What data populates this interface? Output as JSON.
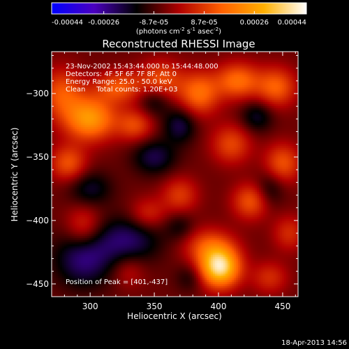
{
  "chart_data": {
    "type": "heatmap",
    "title": "Reconstructed RHESSI Image",
    "xlabel": "Heliocentric X (arcsec)",
    "ylabel": "Heliocentric Y (arcsec)",
    "xlim": [
      270,
      462
    ],
    "ylim": [
      -460,
      -267
    ],
    "x_ticks": [
      300,
      350,
      400,
      450
    ],
    "y_ticks": [
      -300,
      -350,
      -400,
      -450
    ],
    "annotations": [
      "23-Nov-2002 15:43:44.000 to 15:44:48.000",
      "Detectors: 4F 5F 6F 7F 8F, Att 0",
      "Energy Range: 25.0 - 50.0 keV",
      "Clean     Total counts: 1.20E+03"
    ],
    "peak_label": "Position of Peak = [401,-437]",
    "peak": {
      "x": 401,
      "y": -437
    },
    "colorbar": {
      "min": -0.00044,
      "max": 0.00044,
      "ticks": [
        "-0.00044",
        "-0.00026",
        "-8.7e-05",
        "8.7e-05",
        "0.00026",
        "0.00044"
      ],
      "unit_label": "(photons cm",
      "unit_sup1": "-2",
      "unit_mid": " s",
      "unit_sup2": "-1",
      "unit_end": " asec",
      "unit_sup3": "-2",
      "unit_close": ")",
      "colormap": [
        "#0000ff",
        "#4b00c0",
        "#000000",
        "#b00000",
        "#ff6000",
        "#ffb000",
        "#ffffff"
      ]
    },
    "sources": [
      {
        "x": 401,
        "y": -437,
        "sx": 11,
        "sy": 11,
        "a": 0.00044
      },
      {
        "x": 392,
        "y": -420,
        "sx": 14,
        "sy": 10,
        "a": 0.00016
      },
      {
        "x": 300,
        "y": -320,
        "sx": 14,
        "sy": 12,
        "a": 0.0003
      },
      {
        "x": 278,
        "y": -300,
        "sx": 12,
        "sy": 14,
        "a": 0.00018
      },
      {
        "x": 322,
        "y": -295,
        "sx": 13,
        "sy": 9,
        "a": 0.00018
      },
      {
        "x": 335,
        "y": -325,
        "sx": 10,
        "sy": 9,
        "a": 0.00016
      },
      {
        "x": 283,
        "y": -355,
        "sx": 10,
        "sy": 10,
        "a": 0.00018
      },
      {
        "x": 295,
        "y": -405,
        "sx": 10,
        "sy": 12,
        "a": 0.00014
      },
      {
        "x": 345,
        "y": -395,
        "sx": 10,
        "sy": 9,
        "a": 0.00012
      },
      {
        "x": 370,
        "y": -380,
        "sx": 10,
        "sy": 10,
        "a": 0.00014
      },
      {
        "x": 355,
        "y": -290,
        "sx": 12,
        "sy": 11,
        "a": 0.00018
      },
      {
        "x": 385,
        "y": -300,
        "sx": 11,
        "sy": 12,
        "a": 0.00022
      },
      {
        "x": 415,
        "y": -290,
        "sx": 12,
        "sy": 10,
        "a": 0.00022
      },
      {
        "x": 445,
        "y": -295,
        "sx": 11,
        "sy": 11,
        "a": 0.0002
      },
      {
        "x": 410,
        "y": -340,
        "sx": 11,
        "sy": 11,
        "a": 0.00016
      },
      {
        "x": 450,
        "y": -355,
        "sx": 10,
        "sy": 11,
        "a": 0.00018
      },
      {
        "x": 425,
        "y": -385,
        "sx": 10,
        "sy": 10,
        "a": 0.00018
      },
      {
        "x": 455,
        "y": -410,
        "sx": 9,
        "sy": 10,
        "a": 0.00012
      },
      {
        "x": 440,
        "y": -445,
        "sx": 10,
        "sy": 9,
        "a": 0.00012
      },
      {
        "x": 330,
        "y": -440,
        "sx": 9,
        "sy": 9,
        "a": 8e-05
      },
      {
        "x": 295,
        "y": -430,
        "sx": 16,
        "sy": 16,
        "a": -0.00018
      },
      {
        "x": 330,
        "y": -415,
        "sx": 18,
        "sy": 13,
        "a": -0.00016
      },
      {
        "x": 300,
        "y": -375,
        "sx": 12,
        "sy": 10,
        "a": -0.00012
      },
      {
        "x": 350,
        "y": -350,
        "sx": 12,
        "sy": 10,
        "a": -0.00014
      },
      {
        "x": 370,
        "y": -325,
        "sx": 9,
        "sy": 10,
        "a": -0.00014
      },
      {
        "x": 350,
        "y": -305,
        "sx": 9,
        "sy": 9,
        "a": -0.00012
      },
      {
        "x": 430,
        "y": -318,
        "sx": 9,
        "sy": 9,
        "a": -0.00012
      },
      {
        "x": 440,
        "y": -375,
        "sx": 8,
        "sy": 10,
        "a": -0.0001
      },
      {
        "x": 378,
        "y": -445,
        "sx": 8,
        "sy": 8,
        "a": -8e-05
      },
      {
        "x": 370,
        "y": -405,
        "sx": 8,
        "sy": 8,
        "a": -8e-05
      }
    ]
  },
  "timestamp": "18-Apr-2013 14:56"
}
